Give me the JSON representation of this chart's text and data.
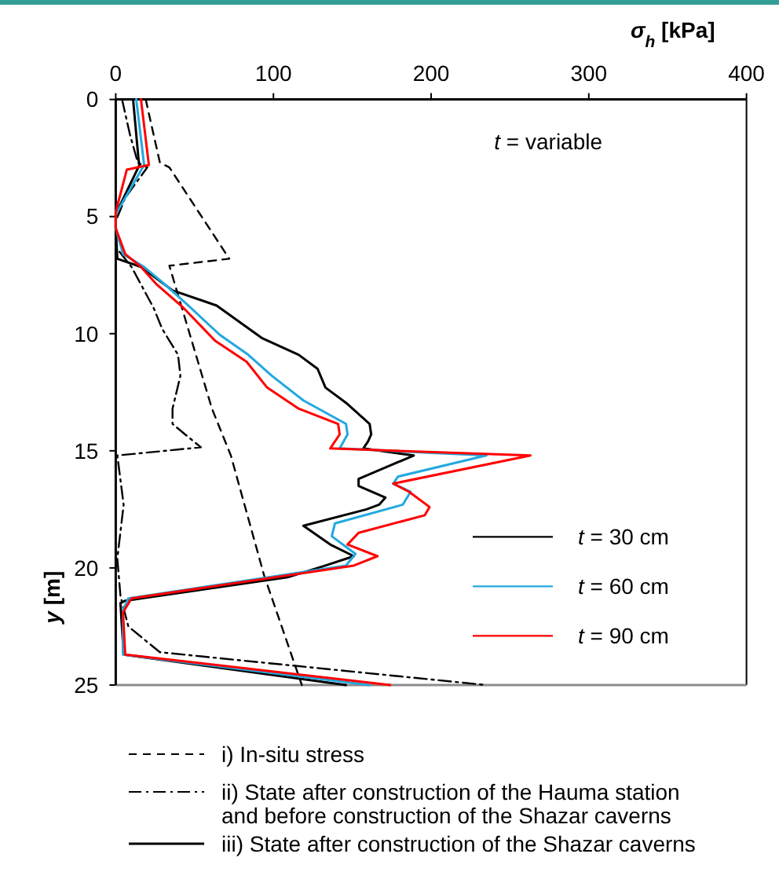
{
  "chart_data": {
    "type": "line",
    "xlabel": "σ$_{h}$ [kPa]",
    "ylabel": "y [m]",
    "xlim": [
      0,
      400
    ],
    "xticks": [
      0,
      100,
      200,
      300,
      400
    ],
    "ylim": [
      25,
      0
    ],
    "yticks": [
      0,
      5,
      10,
      15,
      20,
      25
    ],
    "legend": "bottom",
    "annotations": [
      "t = variable",
      "iii) State after construction of the Shazar caverns"
    ],
    "series": [
      {
        "name": "i) In-situ stress",
        "color": "#000000",
        "line_style": "dashed",
        "x": [
          19,
          28,
          34,
          72,
          34,
          61,
          73,
          94,
          118
        ],
        "values": [
          0,
          2.7,
          2.9,
          6.8,
          7.1,
          13.2,
          15.2,
          20.3,
          25
        ]
      },
      {
        "name": "ii) State after construction of the Hauma station and before construction of the Shazar caverns",
        "color": "#000000",
        "line_style": "dashdot",
        "x": [
          4,
          9,
          14,
          20,
          6,
          0,
          0,
          10,
          24,
          29.5,
          39.5,
          41,
          36,
          36,
          44,
          54,
          1,
          5,
          1,
          3,
          8,
          28,
          235
        ],
        "values": [
          0,
          1.5,
          2.7,
          2.9,
          4.2,
          5.2,
          6.3,
          7.15,
          8.9,
          9.8,
          10.9,
          11.8,
          13.2,
          13.85,
          14.3,
          14.85,
          15.2,
          17.3,
          19.6,
          21.2,
          22.5,
          23.6,
          25
        ]
      },
      {
        "name": "t = 30 cm",
        "color": "#000000",
        "line_style": "solid",
        "x": [
          11,
          14.5,
          15,
          0,
          0,
          1,
          16,
          36,
          64,
          93,
          116,
          128,
          133,
          146,
          161,
          162,
          160,
          157,
          189,
          154,
          154,
          171,
          167,
          159,
          119,
          136,
          151,
          133,
          109,
          6,
          3,
          5,
          146
        ],
        "values": [
          0,
          2.6,
          2.8,
          4.9,
          5.5,
          6.8,
          7.15,
          8.15,
          8.8,
          10.2,
          10.9,
          11.5,
          12.3,
          12.95,
          13.85,
          14.3,
          14.6,
          14.9,
          15.2,
          16.2,
          16.5,
          17,
          17.3,
          17.5,
          18.2,
          19,
          19.5,
          19.9,
          20.4,
          21.4,
          21.5,
          23.7,
          25
        ]
      },
      {
        "name": "t = 60 cm",
        "color": "#22a8e0",
        "line_style": "solid",
        "x": [
          13,
          18,
          0,
          0,
          4.6,
          18,
          29.5,
          46,
          66,
          84,
          99,
          119,
          146,
          147,
          142,
          235,
          179,
          176,
          187,
          182,
          139,
          137,
          152,
          146,
          8,
          4.6,
          4.6,
          161
        ],
        "values": [
          0,
          2.8,
          4.9,
          5.5,
          6.6,
          7.15,
          7.8,
          8.8,
          10.05,
          10.9,
          11.8,
          12.85,
          13.85,
          14.3,
          14.9,
          15.2,
          16.1,
          16.4,
          16.75,
          17.3,
          18.1,
          18.65,
          19.4,
          19.9,
          21.3,
          21.8,
          23.7,
          25
        ]
      },
      {
        "name": "t = 90 cm",
        "color": "#ff0000",
        "line_style": "solid",
        "x": [
          16,
          21,
          7,
          0,
          0,
          6,
          16,
          26,
          43,
          63,
          83,
          96,
          116,
          141,
          142,
          136,
          263,
          176,
          186,
          199,
          196,
          154,
          147,
          166,
          151,
          10,
          4.6,
          6,
          174
        ],
        "values": [
          0,
          2.8,
          3,
          4.8,
          5.5,
          6.6,
          7.15,
          7.9,
          8.9,
          10.3,
          11.2,
          12.3,
          13.2,
          13.85,
          14.3,
          14.9,
          15.2,
          16.4,
          16.75,
          17.4,
          17.75,
          18.5,
          19,
          19.5,
          19.9,
          21.3,
          21.9,
          23.7,
          25
        ]
      }
    ]
  }
}
